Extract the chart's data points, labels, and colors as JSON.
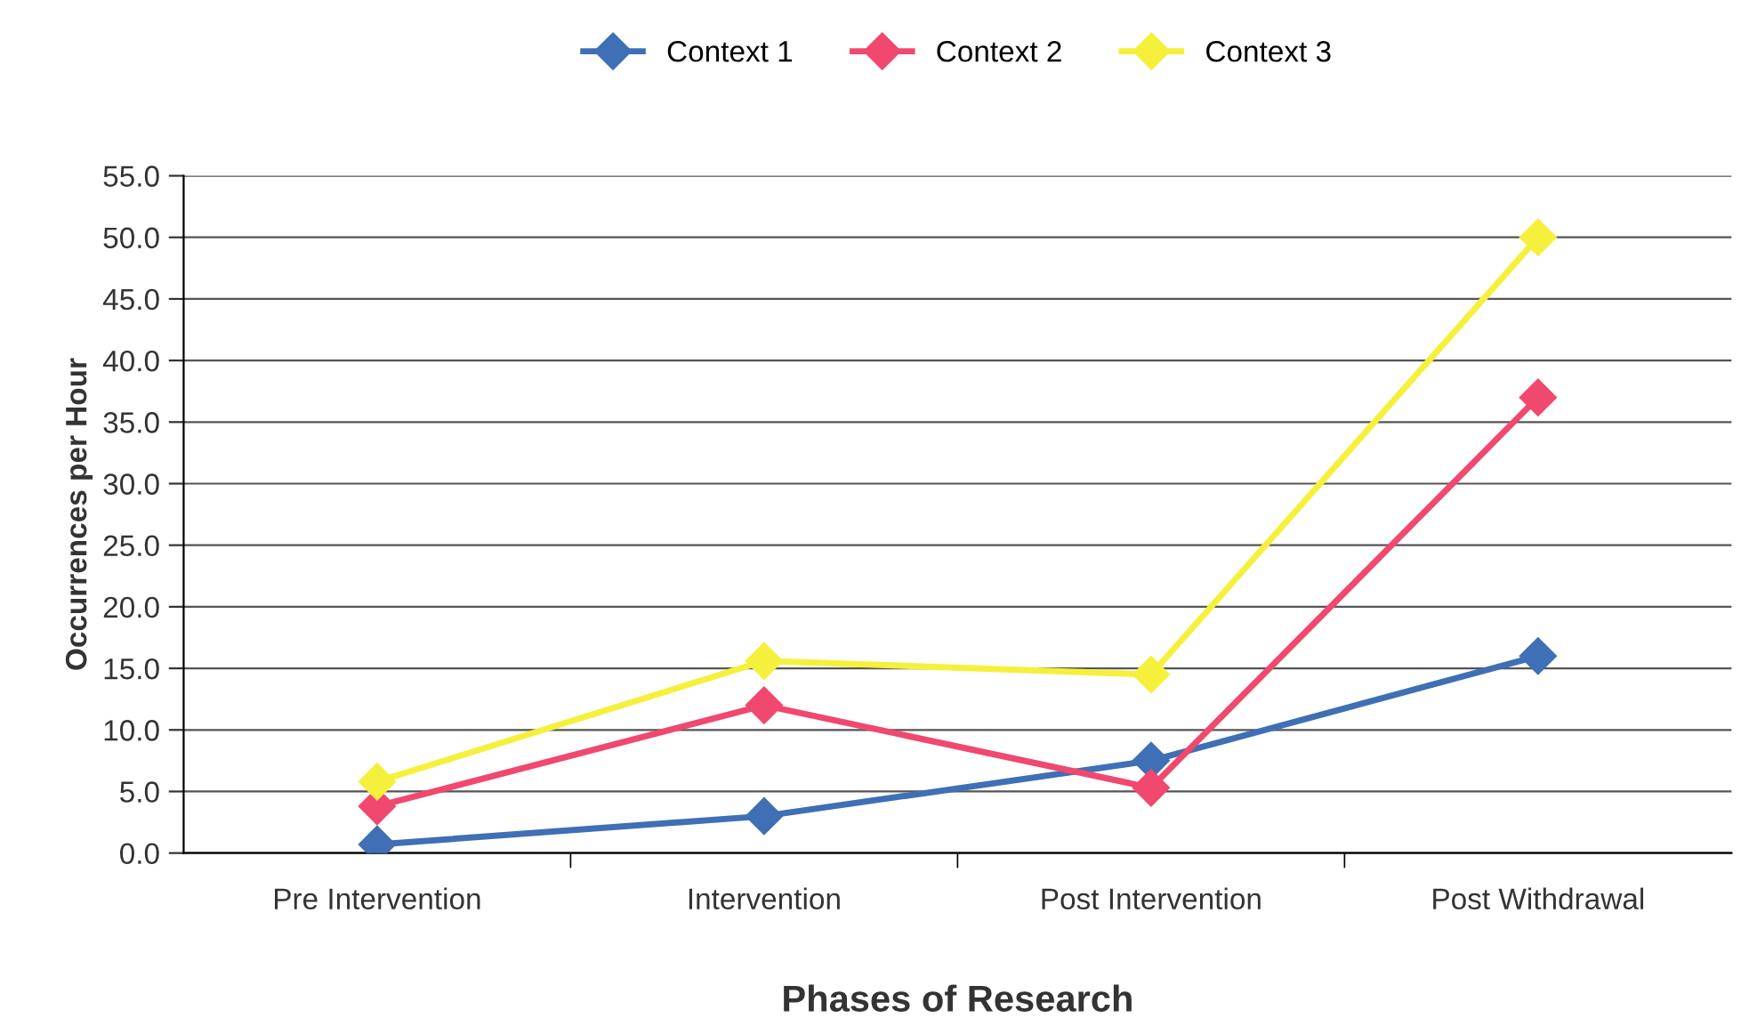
{
  "chart_data": {
    "type": "line",
    "xlabel": "Phases of Research",
    "ylabel": "Occurrences per Hour",
    "categories": [
      "Pre Intervention",
      "Intervention",
      "Post Intervention",
      "Post Withdrawal"
    ],
    "series": [
      {
        "name": "Context 1",
        "color": "#3f6fb5",
        "values": [
          0.7,
          3.0,
          7.5,
          16.0
        ]
      },
      {
        "name": "Context 2",
        "color": "#f0486e",
        "values": [
          3.8,
          12.0,
          5.3,
          37.0
        ]
      },
      {
        "name": "Context 3",
        "color": "#f5f03c",
        "values": [
          5.8,
          15.6,
          14.5,
          50.0
        ]
      }
    ],
    "ylim": [
      0,
      55
    ],
    "yticks": [
      {
        "value": 0,
        "label": "0.0"
      },
      {
        "value": 5,
        "label": "5.0"
      },
      {
        "value": 10,
        "label": "10.0"
      },
      {
        "value": 15,
        "label": "15.0"
      },
      {
        "value": 20,
        "label": "20.0"
      },
      {
        "value": 25,
        "label": "25.0"
      },
      {
        "value": 30,
        "label": "30.0"
      },
      {
        "value": 35,
        "label": "35.0"
      },
      {
        "value": 40,
        "label": "40.0"
      },
      {
        "value": 45,
        "label": "45.0"
      },
      {
        "value": 50,
        "label": "50.0"
      },
      {
        "value": 55,
        "label": "55.0"
      }
    ],
    "grid": "y",
    "legend": "top",
    "marker": "diamond",
    "line_style": "solid"
  }
}
